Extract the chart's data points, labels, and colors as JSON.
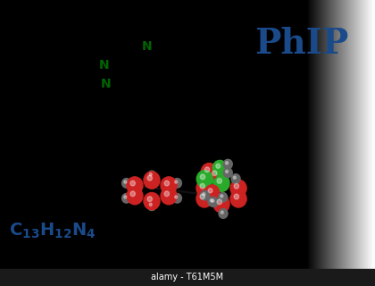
{
  "background_gradient": [
    "#e8e8e8",
    "#f5f5f5",
    "#ffffff",
    "#e0e0e0"
  ],
  "phip_text": "PhIP",
  "phip_color": "#1a4a8a",
  "phip_fontsize": 28,
  "formula_text_parts": [
    {
      "text": "C",
      "fontsize": 18,
      "color": "#1a4a8a",
      "style": "normal"
    },
    {
      "text": "13",
      "fontsize": 11,
      "color": "#1a4a8a",
      "style": "subscript"
    },
    {
      "text": "H",
      "fontsize": 18,
      "color": "#1a4a8a",
      "style": "normal"
    },
    {
      "text": "12",
      "fontsize": 11,
      "color": "#1a4a8a",
      "style": "subscript"
    },
    {
      "text": "N",
      "fontsize": 18,
      "color": "#1a4a8a",
      "style": "normal"
    },
    {
      "text": "4",
      "fontsize": 11,
      "color": "#1a4a8a",
      "style": "subscript"
    }
  ],
  "watermark_text": "alamy - T61M5M",
  "watermark_color": "#ffffff",
  "watermark_bg": "#1a1a1a",
  "nitrogen_color": "#006400",
  "carbon_color": "#000000",
  "bond_color": "#000000",
  "molecule_3d_carbon_color": "#cc2222",
  "molecule_3d_nitrogen_color": "#2aaa2a",
  "molecule_3d_hydrogen_color": "#666666",
  "nh2_color": "#000000"
}
